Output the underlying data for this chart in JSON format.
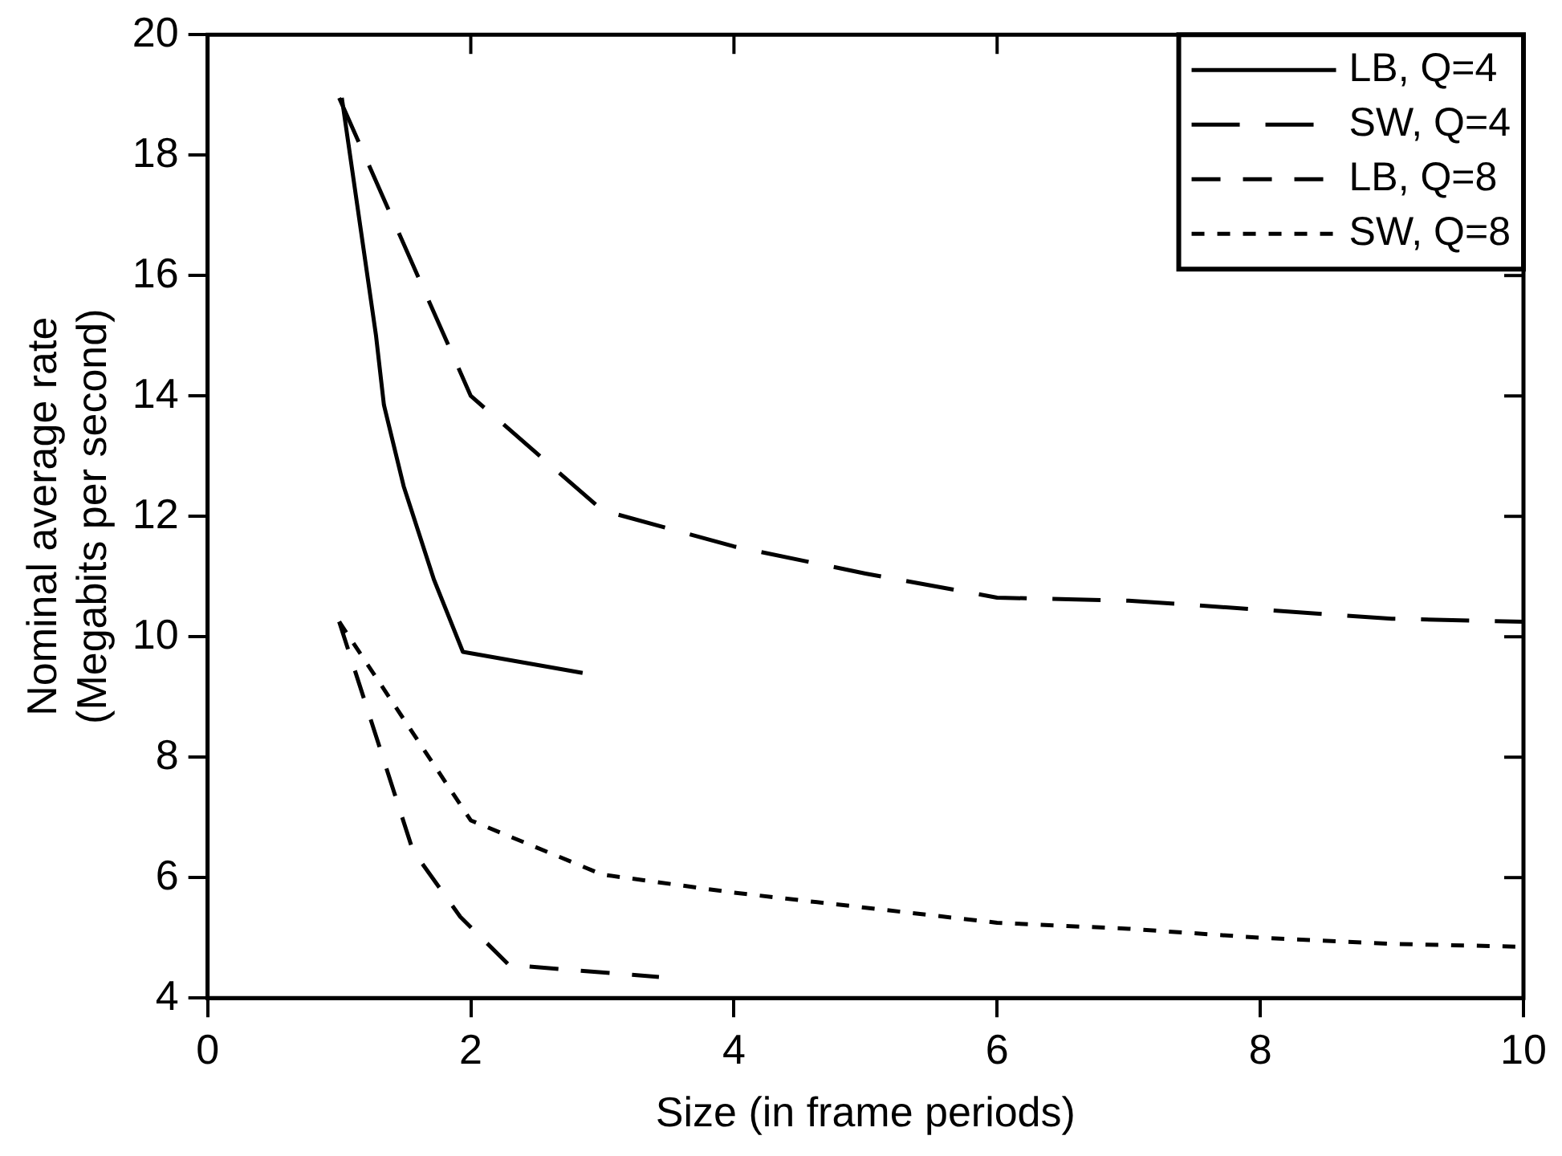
{
  "chart_data": {
    "type": "line",
    "xlabel": "Size (in frame periods)",
    "ylabel": "Nominal average rate\n(Megabits per second)",
    "xlim": [
      0,
      10
    ],
    "ylim": [
      4,
      20
    ],
    "xticks": [
      0,
      2,
      4,
      6,
      8,
      10
    ],
    "yticks": [
      4,
      6,
      8,
      10,
      12,
      14,
      16,
      18,
      20
    ],
    "grid": false,
    "legend": "top right",
    "marker": "none",
    "series": [
      {
        "name": "LB, Q=4",
        "color": "#000000",
        "line_style": "solid",
        "x": [
          1.02,
          1.28,
          1.34,
          1.49,
          1.72,
          1.94,
          2.85
        ],
        "values": [
          18.95,
          15.0,
          13.85,
          12.5,
          10.95,
          9.75,
          9.4
        ]
      },
      {
        "name": "SW, Q=4",
        "color": "#000000",
        "line_style": "dashed",
        "x": [
          1,
          2,
          3,
          4,
          5,
          6,
          7,
          8,
          9,
          10
        ],
        "values": [
          18.95,
          14.0,
          12.1,
          11.5,
          11.05,
          10.65,
          10.6,
          10.45,
          10.3,
          10.25
        ]
      },
      {
        "name": "LB, Q=8",
        "color": "#000000",
        "line_style": "dashed",
        "x": [
          1,
          1.56,
          1.92,
          2.29,
          3.43
        ],
        "values": [
          10.25,
          6.45,
          5.35,
          4.55,
          4.35
        ]
      },
      {
        "name": "SW, Q=8",
        "color": "#000000",
        "line_style": "dotted",
        "x": [
          1,
          2,
          3,
          4,
          5,
          6,
          7,
          8,
          9,
          10
        ],
        "values": [
          10.25,
          6.95,
          6.05,
          5.75,
          5.5,
          5.25,
          5.15,
          5.0,
          4.9,
          4.85
        ]
      }
    ]
  }
}
